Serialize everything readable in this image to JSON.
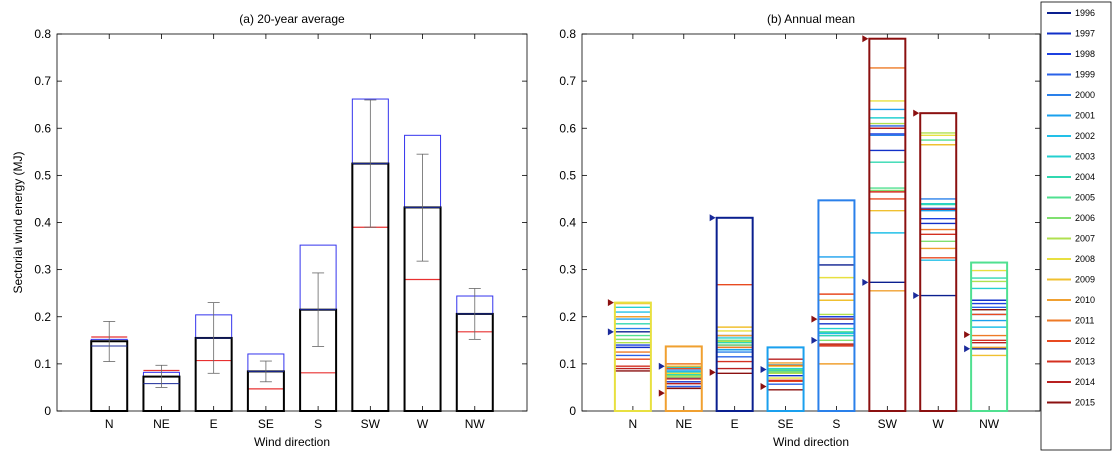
{
  "colors": {
    "blue_box": "#3333ee",
    "red_line": "#e83030",
    "black_box": "#000000",
    "error_bar": "#666666",
    "blue_marker": "#1a2a9a",
    "red_marker": "#8b1010",
    "axis": "#000000"
  },
  "chart_data": [
    {
      "type": "bar",
      "title": "(a) 20-year average",
      "xlabel": "Wind direction",
      "ylabel": "Sectorial wind energy (MJ)",
      "ylim": [
        0,
        0.8
      ],
      "yticks": [
        0,
        0.1,
        0.2,
        0.3,
        0.4,
        0.5,
        0.6,
        0.7,
        0.8
      ],
      "ytick_labels": [
        "0",
        "0.1",
        "0.2",
        "0.3",
        "0.4",
        "0.5",
        "0.6",
        "0.7",
        "0.8"
      ],
      "categories": [
        "N",
        "NE",
        "E",
        "SE",
        "S",
        "SW",
        "W",
        "NW"
      ],
      "series": [
        {
          "role": "mean",
          "values": [
            0.148,
            0.073,
            0.155,
            0.084,
            0.215,
            0.525,
            0.432,
            0.206
          ]
        },
        {
          "role": "upper",
          "values": [
            0.152,
            0.082,
            0.204,
            0.121,
            0.352,
            0.662,
            0.585,
            0.244
          ]
        },
        {
          "role": "lower",
          "values": [
            0.157,
            0.086,
            0.107,
            0.047,
            0.081,
            0.39,
            0.279,
            0.168
          ]
        },
        {
          "role": "inner",
          "values": [
            0.138,
            0.058,
            0.155,
            0.084,
            0.215,
            0.525,
            0.432,
            0.206
          ]
        },
        {
          "role": "error_low",
          "values": [
            0.105,
            0.05,
            0.08,
            0.062,
            0.137,
            0.39,
            0.318,
            0.152
          ]
        },
        {
          "role": "error_high",
          "values": [
            0.19,
            0.097,
            0.23,
            0.106,
            0.293,
            0.66,
            0.545,
            0.26
          ]
        }
      ]
    },
    {
      "type": "bar",
      "title": "(b) Annual mean",
      "xlabel": "Wind direction",
      "ylabel": "",
      "ylim": [
        0,
        0.8
      ],
      "yticks": [
        0,
        0.1,
        0.2,
        0.3,
        0.4,
        0.5,
        0.6,
        0.7,
        0.8
      ],
      "ytick_labels": [
        "0",
        "0.1",
        "0.2",
        "0.3",
        "0.4",
        "0.5",
        "0.6",
        "0.7",
        "0.8"
      ],
      "categories": [
        "N",
        "NE",
        "E",
        "SE",
        "S",
        "SW",
        "W",
        "NW"
      ],
      "legend_position": "right",
      "series": [
        {
          "name": "1996",
          "color": "#0a1f8f",
          "values": [
            0.168,
            0.095,
            0.41,
            0.088,
            0.31,
            0.273,
            0.245,
            0.132
          ]
        },
        {
          "name": "1997",
          "color": "#1230c8",
          "values": [
            0.135,
            0.062,
            0.14,
            0.075,
            0.185,
            0.553,
            0.398,
            0.235
          ]
        },
        {
          "name": "1998",
          "color": "#1c40e0",
          "values": [
            0.14,
            0.07,
            0.16,
            0.08,
            0.2,
            0.588,
            0.408,
            0.228
          ]
        },
        {
          "name": "1999",
          "color": "#2a62e8",
          "values": [
            0.118,
            0.052,
            0.115,
            0.057,
            0.16,
            0.605,
            0.43,
            0.22
          ]
        },
        {
          "name": "2000",
          "color": "#2a80ea",
          "values": [
            0.175,
            0.089,
            0.125,
            0.082,
            0.447,
            0.585,
            0.45,
            0.205
          ]
        },
        {
          "name": "2001",
          "color": "#1aa0ee",
          "values": [
            0.195,
            0.085,
            0.13,
            0.135,
            0.327,
            0.64,
            0.425,
            0.192
          ]
        },
        {
          "name": "2002",
          "color": "#22c0e8",
          "values": [
            0.21,
            0.083,
            0.135,
            0.098,
            0.165,
            0.378,
            0.32,
            0.178
          ]
        },
        {
          "name": "2003",
          "color": "#24d0d0",
          "values": [
            0.22,
            0.092,
            0.155,
            0.09,
            0.175,
            0.622,
            0.44,
            0.26
          ]
        },
        {
          "name": "2004",
          "color": "#30d8b0",
          "values": [
            0.185,
            0.078,
            0.145,
            0.085,
            0.16,
            0.528,
            0.438,
            0.282
          ]
        },
        {
          "name": "2005",
          "color": "#50e090",
          "values": [
            0.16,
            0.08,
            0.15,
            0.088,
            0.168,
            0.473,
            0.575,
            0.315
          ]
        },
        {
          "name": "2006",
          "color": "#80e070",
          "values": [
            0.152,
            0.075,
            0.14,
            0.083,
            0.15,
            0.468,
            0.36,
            0.215
          ]
        },
        {
          "name": "2007",
          "color": "#b0e050",
          "values": [
            0.145,
            0.072,
            0.148,
            0.08,
            0.205,
            0.61,
            0.59,
            0.275
          ]
        },
        {
          "name": "2008",
          "color": "#e8e040",
          "values": [
            0.23,
            0.08,
            0.17,
            0.07,
            0.283,
            0.658,
            0.585,
            0.298
          ]
        },
        {
          "name": "2009",
          "color": "#f0c030",
          "values": [
            0.228,
            0.095,
            0.178,
            0.095,
            0.235,
            0.425,
            0.565,
            0.118
          ]
        },
        {
          "name": "2010",
          "color": "#f0a030",
          "values": [
            0.2,
            0.137,
            0.16,
            0.102,
            0.1,
            0.255,
            0.345,
            0.135
          ]
        },
        {
          "name": "2011",
          "color": "#ee7a26",
          "values": [
            0.125,
            0.1,
            0.135,
            0.097,
            0.14,
            0.728,
            0.385,
            0.16
          ]
        },
        {
          "name": "2012",
          "color": "#e84a20",
          "values": [
            0.11,
            0.09,
            0.268,
            0.063,
            0.248,
            0.45,
            0.325,
            0.205
          ]
        },
        {
          "name": "2013",
          "color": "#d43020",
          "values": [
            0.095,
            0.068,
            0.105,
            0.065,
            0.138,
            0.465,
            0.375,
            0.15
          ]
        },
        {
          "name": "2014",
          "color": "#b82020",
          "values": [
            0.09,
            0.058,
            0.09,
            0.11,
            0.142,
            0.6,
            0.428,
            0.145
          ]
        },
        {
          "name": "2015",
          "color": "#8b1010",
          "values": [
            0.085,
            0.048,
            0.08,
            0.045,
            0.195,
            0.79,
            0.632,
            0.215
          ]
        }
      ],
      "blue_markers": [
        0.168,
        0.095,
        0.41,
        0.088,
        0.15,
        0.273,
        0.245,
        0.132
      ],
      "red_markers": [
        0.23,
        0.038,
        0.082,
        0.052,
        0.195,
        0.79,
        0.632,
        0.162
      ]
    }
  ]
}
